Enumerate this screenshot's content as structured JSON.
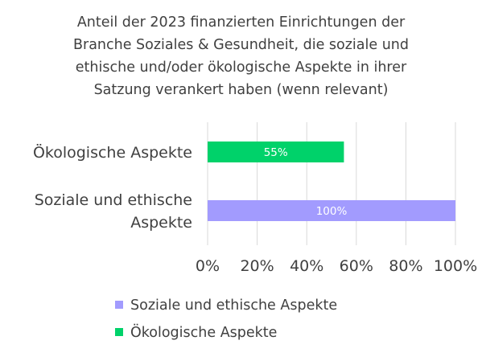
{
  "chart_data": {
    "type": "bar",
    "orientation": "horizontal",
    "title_lines": [
      "Anteil der 2023 finanzierten Einrichtungen der",
      "Branche Soziales & Gesundheit, die soziale und",
      "ethische und/oder ökologische Aspekte in ihrer",
      "Satzung verankert haben (wenn relevant)"
    ],
    "categories": [
      {
        "lines": [
          "Ökologische Aspekte"
        ]
      },
      {
        "lines": [
          "Soziale und ethische",
          "Aspekte"
        ]
      }
    ],
    "series": [
      {
        "name": "Ökologische Aspekte",
        "color": "#00d26a",
        "values": [
          55,
          null
        ],
        "labels": [
          "55%",
          ""
        ]
      },
      {
        "name": "Soziale und ethische Aspekte",
        "color": "#a29bfe",
        "values": [
          null,
          100
        ],
        "labels": [
          "",
          "100%"
        ]
      }
    ],
    "x_ticks": [
      "0%",
      "20%",
      "40%",
      "60%",
      "80%",
      "100%"
    ],
    "xlim": [
      0,
      100
    ],
    "grid": true,
    "grid_color": "#d9d9d9",
    "legend": {
      "placement": "bottom",
      "entries": [
        {
          "label": "Soziale und ethische Aspekte",
          "color": "#a29bfe"
        },
        {
          "label": "Ökologische Aspekte",
          "color": "#00d26a"
        }
      ]
    }
  }
}
